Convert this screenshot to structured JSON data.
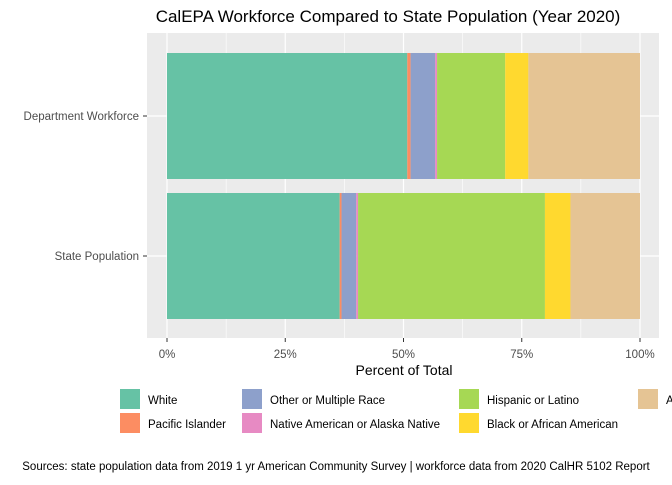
{
  "chart_data": {
    "type": "bar",
    "orientation": "horizontal",
    "stacked": true,
    "title": "CalEPA Workforce Compared to State Population (Year 2020)",
    "xlabel": "Percent of Total",
    "ylabel": "",
    "xlim": [
      0,
      100
    ],
    "x_ticks": [
      "0%",
      "25%",
      "50%",
      "75%",
      "100%"
    ],
    "x_tick_values": [
      0,
      25,
      50,
      75,
      100
    ],
    "categories": [
      "Department Workforce",
      "State Population"
    ],
    "grid": true,
    "legend_position": "bottom",
    "series": [
      {
        "name": "White",
        "color": "#66c2a5",
        "values": [
          50.8,
          36.5
        ]
      },
      {
        "name": "Pacific Islander",
        "color": "#fc8d62",
        "values": [
          0.7,
          0.4
        ]
      },
      {
        "name": "Other or Multiple Race",
        "color": "#8da0cb",
        "values": [
          5.2,
          3.1
        ]
      },
      {
        "name": "Native American or Alaska Native",
        "color": "#e78ac3",
        "values": [
          0.4,
          0.4
        ]
      },
      {
        "name": "Hispanic or Latino",
        "color": "#a6d854",
        "values": [
          14.4,
          39.5
        ]
      },
      {
        "name": "Black or African American",
        "color": "#ffd92f",
        "values": [
          4.9,
          5.4
        ]
      },
      {
        "name": "A",
        "color": "#e5c494",
        "values": [
          23.6,
          14.7
        ]
      }
    ]
  },
  "caption": "Sources: state population data from 2019 1 yr American Community Survey  |  workforce data from 2020 CalHR 5102 Report"
}
